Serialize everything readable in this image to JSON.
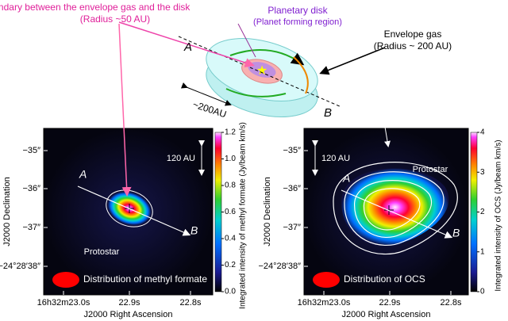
{
  "diagram": {
    "boundary_label": "Boundary between the envelope gas and the disk",
    "boundary_radius": "(Radius ~50 AU)",
    "disk_label": "Planetary disk",
    "disk_sub": "(Planet forming region)",
    "envelope_label": "Envelope gas",
    "envelope_radius": "(Radius ~ 200 AU)",
    "a": "A",
    "b": "B",
    "scale": "~200AU"
  },
  "panels": [
    {
      "y_ticks": [
        "−35″",
        "−36″",
        "−37″",
        "−24°28′38″"
      ],
      "y_label": "J2000 Declination",
      "x_ticks": [
        "16h32m23.0s",
        "22.9s",
        "22.8s"
      ],
      "x_label": "J2000 Right Ascension",
      "scale": "120 AU",
      "a": "A",
      "b": "B",
      "protostar": "Protostar",
      "caption": "Distribution of methyl formate",
      "colorbar_label": "Integrated intensity of methyl formate (Jy/beam km/s)",
      "colorbar_ticks": [
        {
          "value": 0,
          "label": "0.0"
        },
        {
          "value": 0.2,
          "label": "0.2"
        },
        {
          "value": 0.4,
          "label": "0.4"
        },
        {
          "value": 0.6,
          "label": "0.6"
        },
        {
          "value": 0.8,
          "label": "0.8"
        },
        {
          "value": 1,
          "label": "1.0"
        },
        {
          "value": 1.2,
          "label": "1.2"
        }
      ]
    },
    {
      "y_ticks": [
        "−35″",
        "−36″",
        "−37″",
        "−24°28′38″"
      ],
      "y_label": "J2000 Declination",
      "x_ticks": [
        "16h32m23.0s",
        "22.9s",
        "22.8s"
      ],
      "x_label": "J2000 Right Ascension",
      "scale": "120 AU",
      "a": "A",
      "b": "B",
      "protostar": "Protostar",
      "caption": "Distribution of OCS",
      "colorbar_label": "Integrated intensity of OCS (Jy/beam km/s)",
      "colorbar_ticks": [
        0,
        1,
        2,
        3,
        4
      ]
    }
  ]
}
